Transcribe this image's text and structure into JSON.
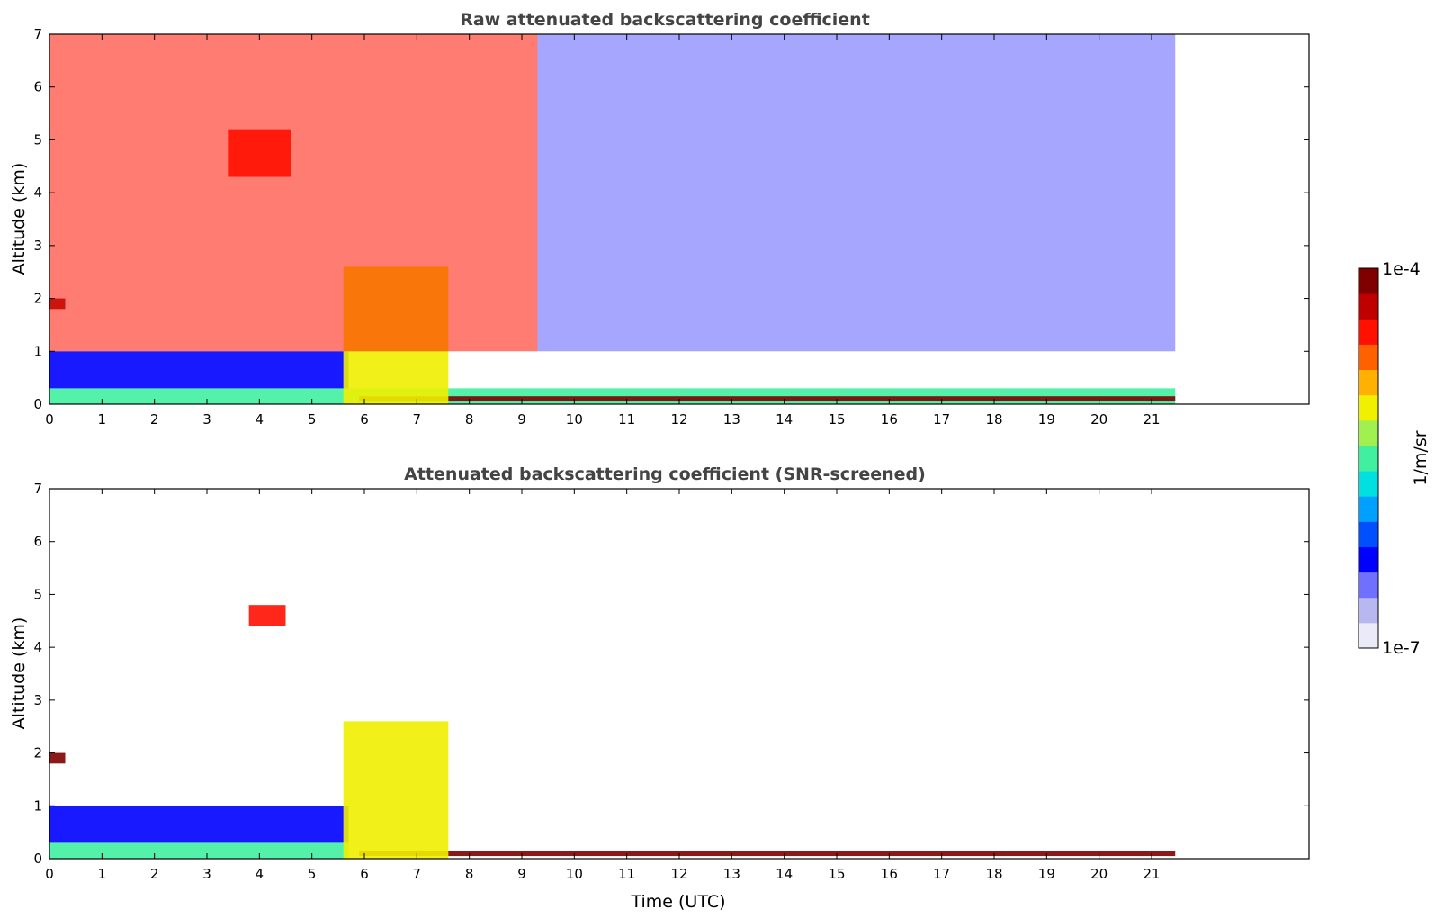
{
  "chart_data": [
    {
      "type": "heatmap",
      "title": "Raw attenuated backscattering coefficient",
      "xlabel": "",
      "ylabel": "Altitude (km)",
      "xlim": [
        0,
        24
      ],
      "ylim": [
        0,
        7
      ],
      "x_ticks": [
        "0",
        "1",
        "2",
        "3",
        "4",
        "5",
        "6",
        "7",
        "8",
        "9",
        "10",
        "11",
        "12",
        "13",
        "14",
        "15",
        "16",
        "17",
        "18",
        "19",
        "20",
        "21"
      ],
      "y_ticks": [
        "0",
        "1",
        "2",
        "3",
        "4",
        "5",
        "6",
        "7"
      ],
      "data_time_end": 21.45,
      "features": [
        {
          "name": "surface layer",
          "time": [
            0,
            21.45
          ],
          "altitude": [
            0,
            0.3
          ],
          "level": "mid"
        },
        {
          "name": "boundary layer",
          "time": [
            0,
            5.7
          ],
          "altitude": [
            0.3,
            1.0
          ],
          "level": "low"
        },
        {
          "name": "near-surface strong return",
          "time": [
            5.9,
            21.45
          ],
          "altitude": [
            0.05,
            0.15
          ],
          "level": "max"
        },
        {
          "name": "aerosol/cloud layer",
          "time": [
            0,
            0.3
          ],
          "altitude": [
            1.8,
            2.0
          ],
          "level": "max"
        },
        {
          "name": "elevated layer",
          "time": [
            3.4,
            4.6
          ],
          "altitude": [
            4.3,
            5.2
          ],
          "level": "high"
        },
        {
          "name": "cloud fallstreaks",
          "time": [
            5.6,
            7.6
          ],
          "altitude": [
            0,
            2.6
          ],
          "level": "mid-high"
        },
        {
          "name": "noisy background",
          "time": [
            0,
            9.3
          ],
          "altitude": [
            1.0,
            7.0
          ],
          "level": "high"
        },
        {
          "name": "clear background",
          "time": [
            9.3,
            21.45
          ],
          "altitude": [
            1.0,
            7.0
          ],
          "level": "low"
        }
      ]
    },
    {
      "type": "heatmap",
      "title": "Attenuated backscattering coefficient (SNR-screened)",
      "xlabel": "Time (UTC)",
      "ylabel": "Altitude (km)",
      "xlim": [
        0,
        24
      ],
      "ylim": [
        0,
        7
      ],
      "x_ticks": [
        "0",
        "1",
        "2",
        "3",
        "4",
        "5",
        "6",
        "7",
        "8",
        "9",
        "10",
        "11",
        "12",
        "13",
        "14",
        "15",
        "16",
        "17",
        "18",
        "19",
        "20",
        "21"
      ],
      "y_ticks": [
        "0",
        "1",
        "2",
        "3",
        "4",
        "5",
        "6",
        "7"
      ],
      "data_time_end": 21.45,
      "features": [
        {
          "name": "surface layer",
          "time": [
            0,
            5.7
          ],
          "altitude": [
            0,
            0.3
          ],
          "level": "mid"
        },
        {
          "name": "boundary layer",
          "time": [
            0,
            5.7
          ],
          "altitude": [
            0.3,
            1.0
          ],
          "level": "low"
        },
        {
          "name": "near-surface strong return",
          "time": [
            5.9,
            21.45
          ],
          "altitude": [
            0.05,
            0.15
          ],
          "level": "max"
        },
        {
          "name": "aerosol/cloud layer",
          "time": [
            0,
            0.3
          ],
          "altitude": [
            1.8,
            2.0
          ],
          "level": "max"
        },
        {
          "name": "elevated layer",
          "time": [
            3.8,
            4.5
          ],
          "altitude": [
            4.4,
            4.8
          ],
          "level": "high"
        },
        {
          "name": "cloud fallstreaks",
          "time": [
            5.6,
            7.6
          ],
          "altitude": [
            0,
            2.6
          ],
          "level": "mid-high"
        }
      ]
    }
  ],
  "colorbar": {
    "max_label": "1e-4",
    "min_label": "1e-7",
    "unit_label": "1/m/sr",
    "colormap": [
      "#eaeaf8",
      "#b8b8f0",
      "#7070ff",
      "#0000ff",
      "#0050ff",
      "#00a0ff",
      "#00e0e0",
      "#40f0a0",
      "#a0f050",
      "#f0f000",
      "#ffb000",
      "#ff6000",
      "#ff1000",
      "#c00000",
      "#800000"
    ]
  }
}
